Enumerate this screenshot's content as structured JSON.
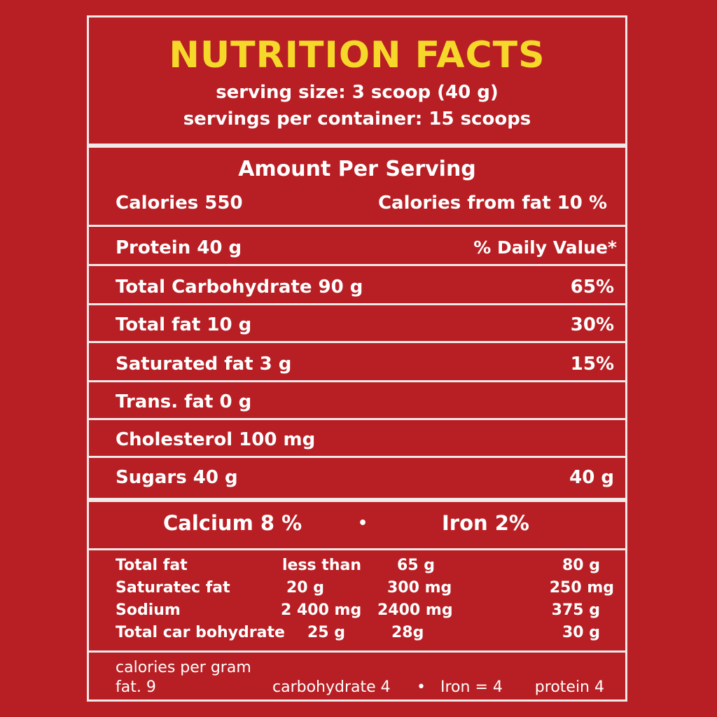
{
  "header": {
    "title": "NUTRITION FACTS",
    "serving_size": "serving size: 3 scoop (40 g)",
    "servings_per_container": "servings per container: 15 scoops"
  },
  "amount": {
    "heading": "Amount Per Serving",
    "calories": "Calories 550",
    "calories_from_fat": "Calories from fat 10 %"
  },
  "nutrients": [
    {
      "label": "Protein 40 g",
      "value": "% Daily Value*"
    },
    {
      "label": "Total Carbohydrate 90 g",
      "value": "65%"
    },
    {
      "label": "Total fat 10 g",
      "value": "30%"
    },
    {
      "label": "Saturated fat 3 g",
      "value": "15%"
    },
    {
      "label": "Trans. fat 0 g",
      "value": ""
    },
    {
      "label": "Cholesterol 100 mg",
      "value": ""
    },
    {
      "label": "Sugars 40 g",
      "value": "40 g"
    }
  ],
  "minerals": {
    "calcium": "Calcium 8 %",
    "separator": "•",
    "iron": "Iron 2%"
  },
  "footnote_table": [
    {
      "name": "Total fat",
      "c1": "less than",
      "c2": "65 g",
      "c3": "80 g"
    },
    {
      "name": "Saturatec fat",
      "c1": "20 g",
      "c2": "300 mg",
      "c3": "250 mg"
    },
    {
      "name": "Sodium",
      "c1": "2 400 mg",
      "c2": "2400 mg",
      "c3": "375 g"
    },
    {
      "name": "Total car bohydrate",
      "c1": "25 g",
      "c2": "28g",
      "c3": "30 g"
    }
  ],
  "calories_per_gram": {
    "heading": "calories per gram",
    "fat": "fat. 9",
    "carbohydrate": "carbohydrate 4",
    "separator": "•",
    "iron": "Iron = 4",
    "protein": "protein 4"
  },
  "colors": {
    "background": "#b81f24",
    "title": "#f6d82a",
    "text": "#ffffff",
    "rule": "#f4e9e9"
  }
}
